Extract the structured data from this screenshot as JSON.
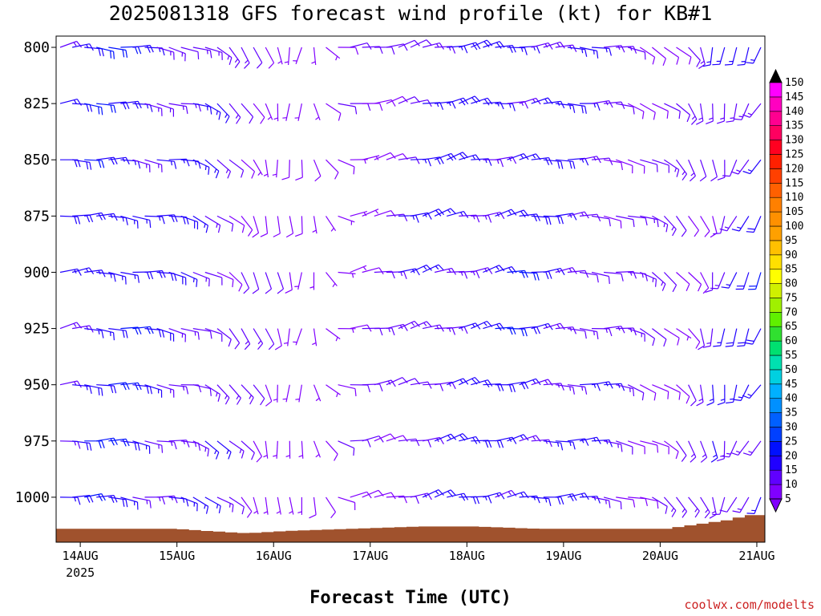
{
  "title": "2025081318 GFS forecast wind profile (kt) for KB#1",
  "xlabel": "Forecast Time (UTC)",
  "credit": "coolwx.com/modelts",
  "chart_data": {
    "type": "wind-barb-profile",
    "title": "2025081318 GFS forecast wind profile (kt) for KB#1",
    "xlabel": "Forecast Time (UTC)",
    "ylabel": "",
    "y_axis": "pressure (hPa), inverted",
    "ylim": [
      1020,
      795
    ],
    "yticks": [
      800,
      825,
      850,
      875,
      900,
      925,
      950,
      975,
      1000
    ],
    "xlim_hours": [
      -6,
      170
    ],
    "xticks": [
      {
        "label": "14AUG",
        "sub": "2025",
        "hour": 0
      },
      {
        "label": "15AUG",
        "sub": "",
        "hour": 24
      },
      {
        "label": "16AUG",
        "sub": "",
        "hour": 48
      },
      {
        "label": "17AUG",
        "sub": "",
        "hour": 72
      },
      {
        "label": "18AUG",
        "sub": "",
        "hour": 96
      },
      {
        "label": "19AUG",
        "sub": "",
        "hour": 120
      },
      {
        "label": "20AUG",
        "sub": "",
        "hour": 144
      },
      {
        "label": "21AUG",
        "sub": "",
        "hour": 168
      }
    ],
    "grid": false,
    "levels_hpa": [
      800,
      825,
      850,
      875,
      900,
      925,
      950,
      975,
      1000
    ],
    "wind_samples": [
      {
        "hour": -6,
        "dir_deg": 80,
        "speed_kt": 15
      },
      {
        "hour": 0,
        "dir_deg": 90,
        "speed_kt": 18
      },
      {
        "hour": 12,
        "dir_deg": 95,
        "speed_kt": 18
      },
      {
        "hour": 24,
        "dir_deg": 100,
        "speed_kt": 15
      },
      {
        "hour": 36,
        "dir_deg": 130,
        "speed_kt": 12
      },
      {
        "hour": 48,
        "dir_deg": 170,
        "speed_kt": 8
      },
      {
        "hour": 56,
        "dir_deg": 190,
        "speed_kt": 5
      },
      {
        "hour": 66,
        "dir_deg": 80,
        "speed_kt": 8
      },
      {
        "hour": 84,
        "dir_deg": 75,
        "speed_kt": 15
      },
      {
        "hour": 108,
        "dir_deg": 80,
        "speed_kt": 18
      },
      {
        "hour": 132,
        "dir_deg": 95,
        "speed_kt": 12
      },
      {
        "hour": 150,
        "dir_deg": 140,
        "speed_kt": 10
      },
      {
        "hour": 162,
        "dir_deg": 200,
        "speed_kt": 15
      },
      {
        "hour": 170,
        "dir_deg": 210,
        "speed_kt": 18
      }
    ],
    "surface_pressure": [
      {
        "hour": -6,
        "hpa": 1014
      },
      {
        "hour": 22,
        "hpa": 1014
      },
      {
        "hour": 30,
        "hpa": 1015
      },
      {
        "hour": 40,
        "hpa": 1016
      },
      {
        "hour": 50,
        "hpa": 1015
      },
      {
        "hour": 66,
        "hpa": 1014
      },
      {
        "hour": 84,
        "hpa": 1013
      },
      {
        "hour": 96,
        "hpa": 1013
      },
      {
        "hour": 112,
        "hpa": 1014
      },
      {
        "hour": 144,
        "hpa": 1014
      },
      {
        "hour": 152,
        "hpa": 1012
      },
      {
        "hour": 160,
        "hpa": 1010
      },
      {
        "hour": 164,
        "hpa": 1008
      },
      {
        "hour": 170,
        "hpa": 1008
      }
    ],
    "colorbar": {
      "label_values": [
        5,
        10,
        15,
        20,
        25,
        30,
        35,
        40,
        45,
        50,
        55,
        60,
        65,
        70,
        75,
        80,
        85,
        90,
        95,
        100,
        105,
        110,
        115,
        120,
        125,
        130,
        135,
        140,
        145,
        150
      ],
      "colors": [
        "#8000ff",
        "#6000ff",
        "#2000ff",
        "#0010ff",
        "#0040ff",
        "#0060ff",
        "#0090ff",
        "#00b0ff",
        "#00d0e0",
        "#00e0b0",
        "#00e070",
        "#30e030",
        "#60f000",
        "#a0f000",
        "#d0f000",
        "#ffff00",
        "#ffe000",
        "#ffc000",
        "#ffa000",
        "#ff9000",
        "#ff8000",
        "#ff6000",
        "#ff4000",
        "#ff2000",
        "#ff0020",
        "#ff0060",
        "#ff0090",
        "#ff00c0",
        "#ff00ff"
      ],
      "extend_low_color": "#8000ff",
      "extend_high_color": "#000000"
    },
    "terrain_color": "#a0522d"
  }
}
